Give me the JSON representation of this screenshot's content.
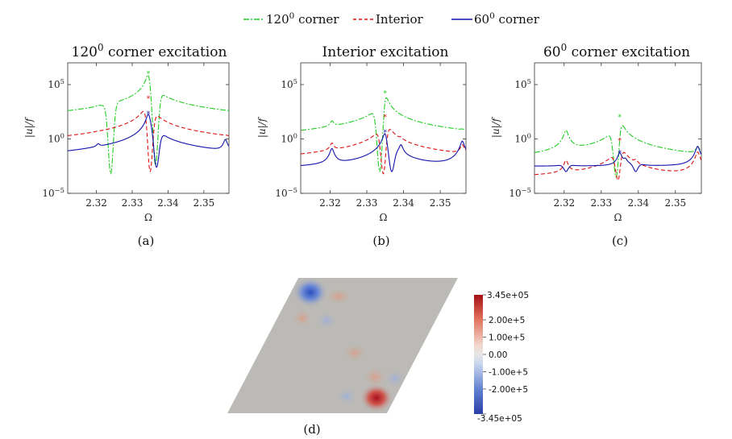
{
  "legend": {
    "entries": [
      {
        "label": "120",
        "sup": "0",
        "suffix": " corner",
        "color": "#22cc22",
        "style": "dash-dot"
      },
      {
        "label": "Interior",
        "sup": "",
        "suffix": "",
        "color": "#dd1111",
        "style": "dashed"
      },
      {
        "label": "60",
        "sup": "0",
        "suffix": " corner",
        "color": "#1111aa",
        "style": "solid"
      }
    ]
  },
  "chart_data": [
    {
      "type": "line",
      "title": "120",
      "title_sup": "0",
      "title_suffix": " corner excitation",
      "caption": "(a)",
      "xlabel": "Ω",
      "ylabel": "|u|/f",
      "xlim": [
        2.312,
        2.357
      ],
      "xticks": [
        2.32,
        2.33,
        2.34,
        2.35
      ],
      "xtick_labels": [
        "2.32",
        "2.33",
        "2.34",
        "2.35"
      ],
      "ylog": true,
      "ylim_exp": [
        -5,
        7
      ],
      "yticks": [
        {
          "exp": 5,
          "label": "10",
          "sup": "5"
        },
        {
          "exp": 0,
          "label": "10",
          "sup": "0"
        },
        {
          "exp": -5,
          "label": "10",
          "sup": "−5"
        }
      ],
      "resonances": [
        2.3205,
        2.3345,
        2.3365,
        2.3393,
        2.356
      ],
      "series": [
        {
          "name": "120 corner",
          "color": "#22cc22",
          "dash": "7,2,2,2",
          "base": -1.6,
          "peaks": [
            2.4,
            6.0,
            -0.2,
            1.2,
            -0.2
          ],
          "dips": [
            [
              2.324,
              -3.2
            ],
            [
              2.3365,
              -2.4
            ]
          ],
          "marker": 6.0
        },
        {
          "name": "Interior",
          "color": "#dd1111",
          "dash": "5,3",
          "base": -2.5,
          "peaks": [
            -0.3,
            3.7,
            -1.6,
            -0.5,
            -1.0
          ],
          "dips": [
            [
              2.335,
              -3.0
            ]
          ],
          "marker": 3.7
        },
        {
          "name": "60 corner",
          "color": "#1111aa",
          "dash": "",
          "base": -3.0,
          "peaks": [
            -0.8,
            2.3,
            -1.4,
            -0.9,
            -0.1
          ],
          "dips": [
            [
              2.3368,
              -2.6
            ]
          ],
          "marker": 2.3
        }
      ]
    },
    {
      "type": "line",
      "title": "Interior excitation",
      "title_sup": "",
      "title_suffix": "",
      "caption": "(b)",
      "xlabel": "Ω",
      "ylabel": "|u|/f",
      "xlim": [
        2.312,
        2.357
      ],
      "xticks": [
        2.32,
        2.33,
        2.34,
        2.35
      ],
      "xtick_labels": [
        "2.32",
        "2.33",
        "2.34",
        "2.35"
      ],
      "ylog": true,
      "ylim_exp": [
        -5,
        7
      ],
      "yticks": [
        {
          "exp": 5,
          "label": "10",
          "sup": "5"
        },
        {
          "exp": 0,
          "label": "10",
          "sup": "0"
        },
        {
          "exp": -5,
          "label": "10",
          "sup": "−5"
        }
      ],
      "resonances": [
        2.3205,
        2.335,
        2.3365,
        2.3393,
        2.356
      ],
      "series": [
        {
          "name": "120 corner",
          "color": "#22cc22",
          "dash": "7,2,2,2",
          "base": -2.1,
          "peaks": [
            1.5,
            4.2,
            -1.0,
            0.7,
            0.0
          ],
          "dips": [
            [
              2.3335,
              -3.0
            ]
          ],
          "marker": 4.2
        },
        {
          "name": "Interior",
          "color": "#dd1111",
          "dash": "5,3",
          "base": -2.5,
          "peaks": [
            -0.5,
            2.0,
            -1.5,
            -0.3,
            -0.6
          ],
          "dips": [
            [
              2.3345,
              -3.2
            ]
          ],
          "marker": 2.0
        },
        {
          "name": "60 corner",
          "color": "#1111aa",
          "dash": "",
          "base": -2.8,
          "peaks": [
            -0.9,
            0.6,
            -1.6,
            -0.6,
            -0.2
          ],
          "dips": [
            [
              2.3368,
              -3.0
            ]
          ],
          "marker": 0.6
        }
      ]
    },
    {
      "type": "line",
      "title": "60",
      "title_sup": "0",
      "title_suffix": " corner excitation",
      "caption": "(c)",
      "xlabel": "Ω",
      "ylabel": "|u|/f",
      "xlim": [
        2.312,
        2.357
      ],
      "xticks": [
        2.32,
        2.33,
        2.34,
        2.35
      ],
      "xtick_labels": [
        "2.32",
        "2.33",
        "2.34",
        "2.35"
      ],
      "ylog": true,
      "ylim_exp": [
        -5,
        7
      ],
      "yticks": [
        {
          "exp": 5,
          "label": "10",
          "sup": "5"
        },
        {
          "exp": 0,
          "label": "10",
          "sup": "0"
        },
        {
          "exp": -5,
          "label": "10",
          "sup": "−5"
        }
      ],
      "resonances": [
        2.3205,
        2.335,
        2.3365,
        2.3393,
        2.356
      ],
      "series": [
        {
          "name": "120 corner",
          "color": "#22cc22",
          "dash": "7,2,2,2",
          "base": -3.0,
          "peaks": [
            0.8,
            2.0,
            -2.0,
            -1.2,
            -0.8
          ],
          "dips": [
            [
              2.334,
              -3.5
            ]
          ],
          "marker": 2.0
        },
        {
          "name": "Interior",
          "color": "#dd1111",
          "dash": "5,3",
          "base": -3.6,
          "peaks": [
            -2.0,
            -0.2,
            -2.8,
            -2.2,
            -1.2
          ],
          "dips": [
            [
              2.3345,
              -3.8
            ]
          ],
          "marker": -0.2
        },
        {
          "name": "60 corner",
          "color": "#1111aa",
          "dash": "",
          "base": -2.5,
          "peaks": [
            -2.0,
            -1.3,
            -2.0,
            -1.8,
            -0.7
          ],
          "dips": [
            [
              2.3205,
              -3.0
            ],
            [
              2.3393,
              -3.0
            ]
          ],
          "marker": -1.3
        }
      ]
    }
  ],
  "panel_d": {
    "caption": "(d)",
    "colorbar": {
      "min_label": "-3.45e+05",
      "max_label": "3.45e+05",
      "tick_labels": [
        "2.00e+5",
        "1.00e+5",
        "0.00",
        "-1.00e+5",
        "-2.00e+5"
      ],
      "tick_values": [
        200000,
        100000,
        0,
        -100000,
        -200000
      ],
      "range": [
        -345000,
        345000
      ],
      "colors": {
        "low": "#3040b0",
        "mid": "#dddddd",
        "high": "#b01020"
      }
    },
    "field_color": "#bcbab6"
  }
}
